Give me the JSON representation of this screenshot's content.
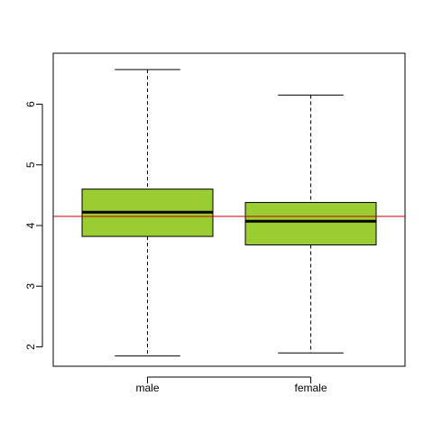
{
  "chart_data": {
    "type": "boxplot",
    "categories": [
      "male",
      "female"
    ],
    "boxes": [
      {
        "category": "male",
        "whisker_low": 1.85,
        "q1": 3.82,
        "median": 4.22,
        "q3": 4.6,
        "whisker_high": 6.57
      },
      {
        "category": "female",
        "whisker_low": 1.9,
        "q1": 3.68,
        "median": 4.07,
        "q3": 4.38,
        "whisker_high": 6.15
      }
    ],
    "reference_line": {
      "y": 4.15,
      "color": "#cc0000"
    },
    "yticks": [
      "2",
      "3",
      "4",
      "5",
      "6"
    ],
    "ylim": [
      1.68,
      6.84
    ],
    "box_color": "#9acd32",
    "title": "",
    "xlabel": "",
    "ylabel": "",
    "grid": false
  }
}
